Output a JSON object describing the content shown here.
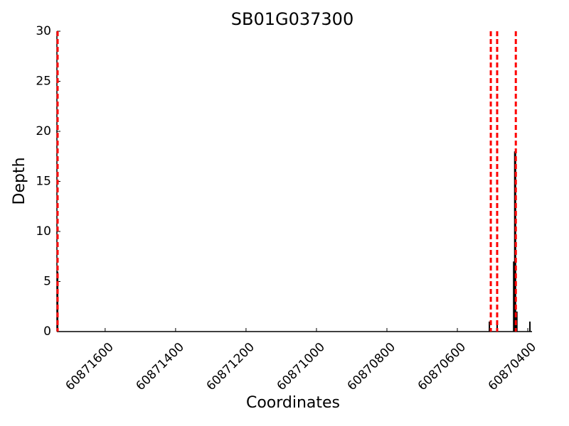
{
  "chart_data": {
    "type": "bar",
    "title": "SB01G037300",
    "x_label": "Coordinates",
    "y_label": "Depth",
    "x": [
      60871735,
      60870509,
      60870487,
      60870440,
      60870437,
      60870435,
      60870433,
      60870431,
      60870394
    ],
    "values": [
      6,
      1,
      1,
      7,
      18,
      18,
      1,
      2,
      1
    ],
    "color": "#000000",
    "markers": [
      60871735,
      60870505,
      60870487,
      60870434
    ],
    "marker_color": "#ff0000",
    "xlim": [
      60871737,
      60870388
    ],
    "xticks": [
      60871600,
      60871400,
      60871200,
      60871000,
      60870800,
      60870600,
      60870400
    ],
    "ylim": [
      0,
      30
    ],
    "yticks": [
      0,
      5,
      10,
      15,
      20,
      25,
      30
    ],
    "grid": false
  }
}
